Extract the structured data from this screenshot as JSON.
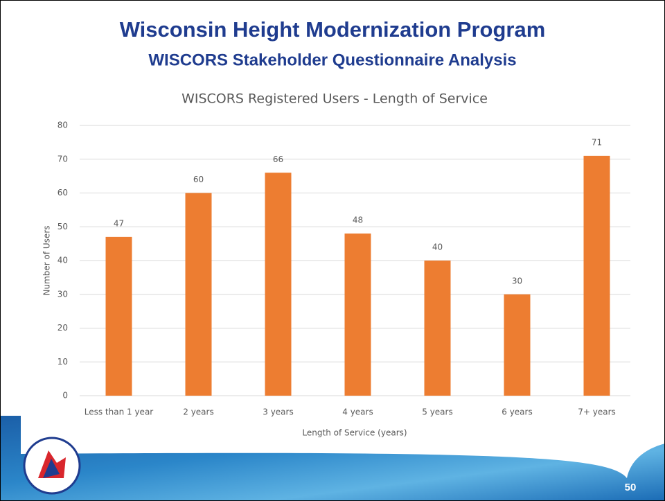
{
  "slide": {
    "title": "Wisconsin Height Modernization Program",
    "subtitle": "WISCORS Stakeholder Questionnaire Analysis",
    "page_number": 50
  },
  "chart_data": {
    "type": "bar",
    "title": "WISCORS Registered Users - Length of Service",
    "x_label": "Length  of Service (years)",
    "y_label": "Number  of Users",
    "categories": [
      "Less than 1 year",
      "2 years",
      "3 years",
      "4 years",
      "5 years",
      "6 years",
      "7+ years"
    ],
    "values": [
      47,
      60,
      66,
      48,
      40,
      30,
      71
    ],
    "color": "#ed7d31",
    "ylim": [
      0,
      80
    ],
    "yticks": [
      0,
      10,
      20,
      30,
      40,
      50,
      60,
      70,
      80
    ],
    "grid": true
  }
}
